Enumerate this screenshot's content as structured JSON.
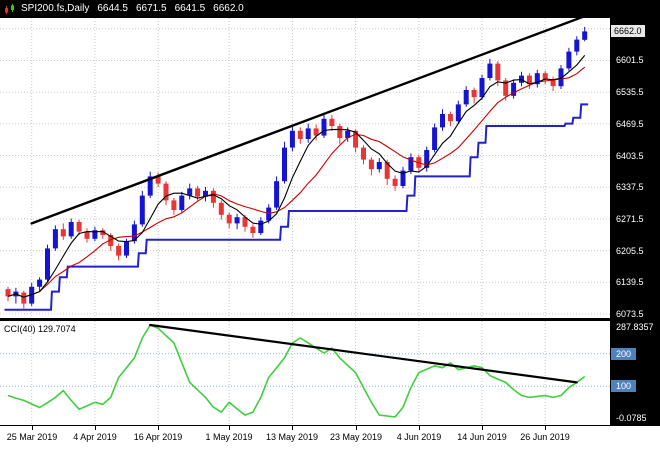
{
  "title_bar": {
    "symbol": "SPI200.fs,Daily",
    "open": "6644.5",
    "high": "6671.5",
    "low": "6641.5",
    "close": "6662.0"
  },
  "cci_label": {
    "name": "CCI(40)",
    "value": "129.7074"
  },
  "colors": {
    "chart_bg": "#ffffff",
    "axis_bg": "#000000",
    "axis_text": "#ffffff",
    "grid": "#c9c9c9",
    "up": "#1414d2",
    "down": "#e83535",
    "ma_fast": "#000000",
    "ma_slow": "#cc0000",
    "step_line": "#2222cc",
    "trendline": "#000000",
    "cci_line": "#3ecf3e",
    "level_line": "#8fb4d8",
    "level_tag": "#4f81bd",
    "price_tag_bg": "#e8e8e8"
  },
  "chart_data": {
    "type": "candlestick",
    "title": "SPI200.fs Daily",
    "price_axis": {
      "min": 6065,
      "max": 6690,
      "gridlines": [
        6667.5,
        6601.5,
        6535.5,
        6469.5,
        6403.5,
        6337.5,
        6271.5,
        6205.5,
        6139.5,
        6073.5
      ],
      "current": 6662.0
    },
    "time_ticks": [
      {
        "label": "25 Mar 2019",
        "index": 3
      },
      {
        "label": "4 Apr 2019",
        "index": 11
      },
      {
        "label": "16 Apr 2019",
        "index": 19
      },
      {
        "label": "1 May 2019",
        "index": 28
      },
      {
        "label": "13 May 2019",
        "index": 36
      },
      {
        "label": "23 May 2019",
        "index": 44
      },
      {
        "label": "4 Jun 2019",
        "index": 52
      },
      {
        "label": "14 Jun 2019",
        "index": 60
      },
      {
        "label": "26 Jun 2019",
        "index": 68
      }
    ],
    "candles": [
      [
        6125,
        6130,
        6100,
        6110
      ],
      [
        6110,
        6128,
        6095,
        6120
      ],
      [
        6118,
        6122,
        6085,
        6095
      ],
      [
        6095,
        6138,
        6090,
        6130
      ],
      [
        6130,
        6150,
        6120,
        6145
      ],
      [
        6145,
        6218,
        6140,
        6210
      ],
      [
        6210,
        6258,
        6205,
        6250
      ],
      [
        6250,
        6262,
        6228,
        6235
      ],
      [
        6235,
        6272,
        6230,
        6265
      ],
      [
        6265,
        6270,
        6238,
        6245
      ],
      [
        6245,
        6252,
        6222,
        6230
      ],
      [
        6230,
        6255,
        6225,
        6248
      ],
      [
        6248,
        6252,
        6230,
        6238
      ],
      [
        6238,
        6242,
        6205,
        6215
      ],
      [
        6215,
        6220,
        6185,
        6195
      ],
      [
        6195,
        6230,
        6190,
        6225
      ],
      [
        6225,
        6268,
        6220,
        6260
      ],
      [
        6260,
        6330,
        6255,
        6320
      ],
      [
        6320,
        6370,
        6315,
        6360
      ],
      [
        6360,
        6368,
        6338,
        6345
      ],
      [
        6345,
        6350,
        6300,
        6310
      ],
      [
        6310,
        6315,
        6280,
        6290
      ],
      [
        6290,
        6328,
        6285,
        6320
      ],
      [
        6320,
        6345,
        6312,
        6335
      ],
      [
        6335,
        6340,
        6310,
        6318
      ],
      [
        6318,
        6338,
        6308,
        6330
      ],
      [
        6330,
        6335,
        6295,
        6305
      ],
      [
        6305,
        6310,
        6270,
        6280
      ],
      [
        6280,
        6285,
        6252,
        6262
      ],
      [
        6262,
        6282,
        6250,
        6275
      ],
      [
        6275,
        6280,
        6245,
        6255
      ],
      [
        6255,
        6260,
        6232,
        6242
      ],
      [
        6242,
        6275,
        6238,
        6268
      ],
      [
        6268,
        6302,
        6262,
        6295
      ],
      [
        6295,
        6360,
        6290,
        6350
      ],
      [
        6350,
        6432,
        6345,
        6420
      ],
      [
        6420,
        6465,
        6412,
        6455
      ],
      [
        6455,
        6462,
        6428,
        6438
      ],
      [
        6438,
        6470,
        6430,
        6460
      ],
      [
        6460,
        6468,
        6435,
        6445
      ],
      [
        6445,
        6492,
        6440,
        6480
      ],
      [
        6480,
        6488,
        6455,
        6465
      ],
      [
        6465,
        6470,
        6428,
        6440
      ],
      [
        6440,
        6462,
        6432,
        6455
      ],
      [
        6455,
        6458,
        6410,
        6420
      ],
      [
        6420,
        6425,
        6385,
        6395
      ],
      [
        6395,
        6400,
        6362,
        6375
      ],
      [
        6375,
        6398,
        6368,
        6390
      ],
      [
        6390,
        6395,
        6342,
        6355
      ],
      [
        6355,
        6362,
        6330,
        6340
      ],
      [
        6340,
        6380,
        6335,
        6372
      ],
      [
        6372,
        6408,
        6365,
        6400
      ],
      [
        6400,
        6405,
        6368,
        6378
      ],
      [
        6378,
        6422,
        6370,
        6415
      ],
      [
        6415,
        6470,
        6410,
        6462
      ],
      [
        6462,
        6500,
        6455,
        6490
      ],
      [
        6490,
        6495,
        6465,
        6475
      ],
      [
        6475,
        6518,
        6470,
        6510
      ],
      [
        6510,
        6548,
        6505,
        6540
      ],
      [
        6540,
        6545,
        6512,
        6525
      ],
      [
        6525,
        6572,
        6520,
        6565
      ],
      [
        6565,
        6605,
        6560,
        6595
      ],
      [
        6595,
        6600,
        6548,
        6560
      ],
      [
        6560,
        6565,
        6518,
        6528
      ],
      [
        6528,
        6562,
        6522,
        6555
      ],
      [
        6555,
        6578,
        6548,
        6570
      ],
      [
        6570,
        6575,
        6542,
        6552
      ],
      [
        6552,
        6582,
        6545,
        6575
      ],
      [
        6575,
        6580,
        6552,
        6562
      ],
      [
        6562,
        6568,
        6538,
        6548
      ],
      [
        6548,
        6592,
        6542,
        6585
      ],
      [
        6585,
        6628,
        6580,
        6620
      ],
      [
        6620,
        6652,
        6612,
        6645
      ],
      [
        6644.5,
        6671.5,
        6641.5,
        6662.0
      ]
    ],
    "step_line": [
      6082,
      6082,
      6082,
      6082,
      6082,
      6082,
      6120,
      6150,
      6172,
      6172,
      6172,
      6172,
      6172,
      6172,
      6172,
      6172,
      6172,
      6200,
      6228,
      6228,
      6228,
      6228,
      6228,
      6228,
      6228,
      6228,
      6228,
      6228,
      6228,
      6228,
      6228,
      6228,
      6228,
      6228,
      6228,
      6255,
      6288,
      6288,
      6288,
      6288,
      6288,
      6288,
      6288,
      6288,
      6288,
      6288,
      6288,
      6288,
      6288,
      6288,
      6288,
      6320,
      6360,
      6360,
      6360,
      6360,
      6360,
      6360,
      6360,
      6400,
      6430,
      6465,
      6465,
      6465,
      6465,
      6465,
      6465,
      6465,
      6465,
      6465,
      6465,
      6470,
      6482,
      6510
    ],
    "ma": {
      "fast_period": 5,
      "slow_period": 10
    },
    "trendline": {
      "from": [
        3,
        6262
      ],
      "to": [
        74,
        6700
      ]
    },
    "cci": {
      "axis_max": 287.8357,
      "axis_min": -0.0785,
      "top_label": "287.8357",
      "bottom_label": "-0.0785",
      "levels": [
        200,
        100
      ],
      "trendline": {
        "from": [
          18,
          287.8
        ],
        "to": [
          72,
          112
        ]
      },
      "values": [
        72,
        64,
        57,
        46,
        35,
        50,
        66,
        87,
        57,
        30,
        40,
        51,
        45,
        66,
        127,
        157,
        187,
        248,
        287.8,
        278,
        255,
        233,
        172,
        112,
        89,
        66,
        36,
        21,
        51,
        31,
        12,
        21,
        66,
        127,
        157,
        187,
        233,
        248,
        233,
        217,
        202,
        217,
        187,
        164,
        142,
        96,
        51,
        12,
        9,
        6,
        36,
        96,
        142,
        152,
        163,
        157,
        172,
        151,
        157,
        163,
        157,
        133,
        122,
        112,
        90,
        72,
        66,
        69,
        72,
        66,
        72,
        96,
        112,
        129.7
      ]
    }
  }
}
